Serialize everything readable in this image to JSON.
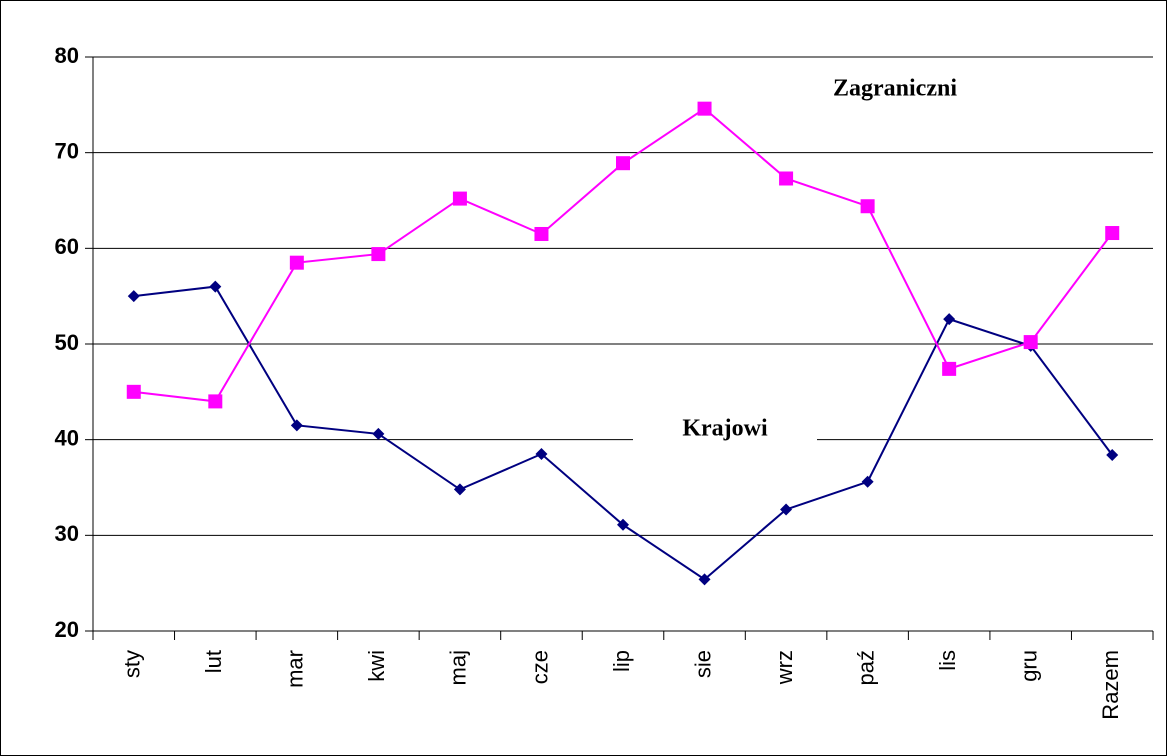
{
  "chart_data": {
    "type": "line",
    "categories": [
      "sty",
      "lut",
      "mar",
      "kwi",
      "maj",
      "cze",
      "lip",
      "sie",
      "wrz",
      "paź",
      "lis",
      "gru",
      "Razem"
    ],
    "series": [
      {
        "name": "Krajowi",
        "color": "#000080",
        "marker": "diamond",
        "values": [
          55,
          56,
          41.5,
          40.6,
          34.8,
          38.5,
          31.1,
          25.4,
          32.7,
          35.6,
          52.6,
          49.8,
          38.4
        ]
      },
      {
        "name": "Zagraniczni",
        "color": "#ff00ff",
        "marker": "square",
        "values": [
          45,
          44,
          58.5,
          59.4,
          65.2,
          61.5,
          68.9,
          74.6,
          67.3,
          64.4,
          47.4,
          50.2,
          61.6
        ]
      }
    ],
    "ylim": [
      20,
      80
    ],
    "yticks": [
      20,
      30,
      40,
      50,
      60,
      70,
      80
    ],
    "grid": true
  }
}
